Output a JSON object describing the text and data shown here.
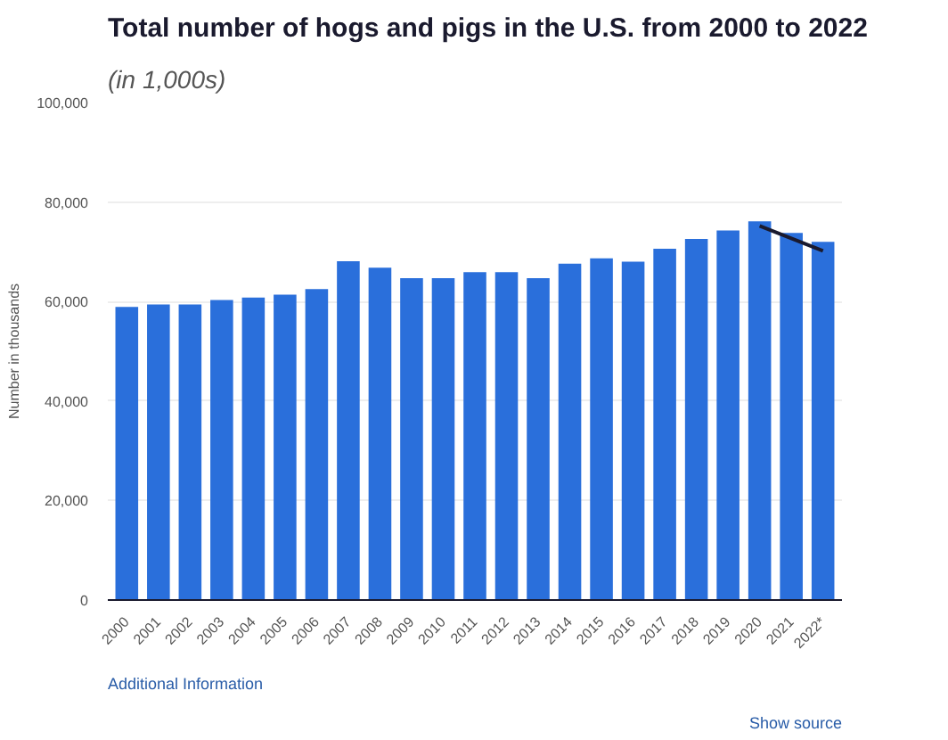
{
  "chart_data": {
    "type": "bar",
    "title": "Total number of hogs and pigs in the U.S. from 2000 to 2022",
    "subtitle": "(in 1,000s)",
    "ylabel": "Number in thousands",
    "categories": [
      "2000",
      "2001",
      "2002",
      "2003",
      "2004",
      "2005",
      "2006",
      "2007",
      "2008",
      "2009",
      "2010",
      "2011",
      "2012",
      "2013",
      "2014",
      "2015",
      "2016",
      "2017",
      "2018",
      "2019",
      "2020",
      "2021",
      "2022*"
    ],
    "series": [
      {
        "color": "#2a6fdb",
        "values": [
          58900,
          59400,
          59400,
          60300,
          60800,
          61400,
          62500,
          68100,
          66800,
          64700,
          64700,
          65900,
          65900,
          64700,
          67600,
          68700,
          68000,
          70600,
          72600,
          74300,
          76100,
          73800,
          72000
        ]
      },
      {
        "type": "line",
        "color": "#1a1a2e",
        "values": [
          null,
          null,
          null,
          null,
          null,
          null,
          null,
          null,
          null,
          null,
          null,
          null,
          null,
          null,
          null,
          null,
          null,
          null,
          null,
          null,
          75200,
          72700,
          70200
        ]
      }
    ],
    "ylim": [
      0,
      100000
    ],
    "yticks": [
      {
        "value": 0,
        "label": "0"
      },
      {
        "value": 20000,
        "label": "20,000"
      },
      {
        "value": 40000,
        "label": "40,000"
      },
      {
        "value": 60000,
        "label": "60,000"
      },
      {
        "value": 80000,
        "label": "80,000"
      },
      {
        "value": 100000,
        "label": "100,000"
      }
    ],
    "grid": "y",
    "annotations": [
      "Additional Information",
      "Show source"
    ]
  }
}
